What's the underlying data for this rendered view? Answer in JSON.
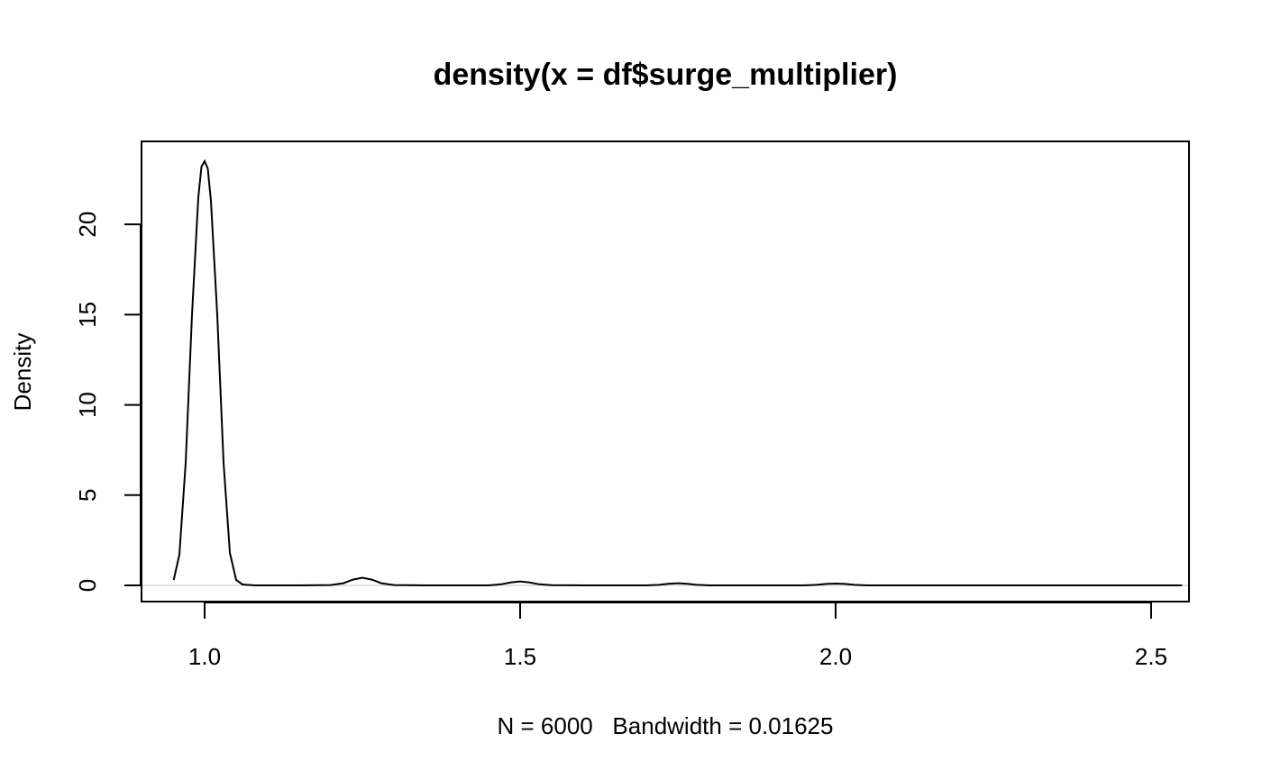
{
  "chart_data": {
    "type": "line",
    "title": "density(x = df$surge_multiplier)",
    "xlabel": "N = 6000   Bandwidth = 0.01625",
    "ylabel": "Density",
    "xlim": [
      0.9,
      2.56
    ],
    "ylim": [
      -0.9,
      24.6
    ],
    "x_ticks": [
      1.0,
      1.5,
      2.0,
      2.5
    ],
    "x_tick_labels": [
      "1.0",
      "1.5",
      "2.0",
      "2.5"
    ],
    "y_ticks": [
      0,
      5,
      10,
      15,
      20
    ],
    "y_tick_labels": [
      "0",
      "5",
      "10",
      "15",
      "20"
    ],
    "zero_line": true,
    "grid": false,
    "series": [
      {
        "line_color": "#000000",
        "x": [
          0.951,
          0.96,
          0.97,
          0.98,
          0.99,
          0.995,
          1.0,
          1.005,
          1.01,
          1.02,
          1.03,
          1.04,
          1.05,
          1.06,
          1.08,
          1.1,
          1.15,
          1.2,
          1.22,
          1.235,
          1.25,
          1.265,
          1.28,
          1.3,
          1.35,
          1.4,
          1.45,
          1.47,
          1.485,
          1.5,
          1.515,
          1.53,
          1.55,
          1.6,
          1.65,
          1.7,
          1.72,
          1.735,
          1.75,
          1.765,
          1.78,
          1.8,
          1.85,
          1.9,
          1.95,
          1.97,
          1.985,
          2.0,
          2.015,
          2.03,
          2.05,
          2.1,
          2.2,
          2.3,
          2.4,
          2.5,
          2.549
        ],
        "y": [
          0.3,
          1.7,
          6.8,
          15.0,
          21.5,
          23.2,
          23.5,
          23.1,
          21.3,
          15.0,
          6.8,
          1.8,
          0.3,
          0.05,
          0.0,
          0.0,
          0.0,
          0.02,
          0.12,
          0.32,
          0.42,
          0.32,
          0.12,
          0.02,
          0.0,
          0.0,
          0.0,
          0.06,
          0.16,
          0.22,
          0.16,
          0.06,
          0.01,
          0.0,
          0.0,
          0.0,
          0.03,
          0.09,
          0.12,
          0.09,
          0.03,
          0.0,
          0.0,
          0.0,
          0.0,
          0.03,
          0.08,
          0.1,
          0.08,
          0.03,
          0.0,
          0.0,
          0.0,
          0.0,
          0.0,
          0.0,
          0.0
        ]
      }
    ]
  }
}
